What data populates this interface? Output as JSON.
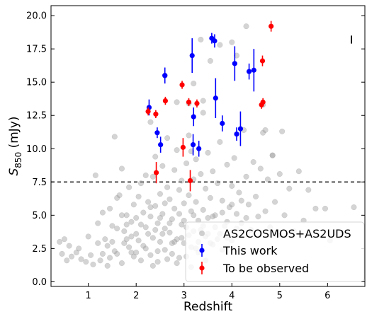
{
  "chart_data": {
    "type": "scatter",
    "xlabel": "Redshift",
    "ylabel_main": "S",
    "ylabel_sub": "850",
    "ylabel_unit": " (mJy)",
    "xlim": [
      0.22,
      6.78
    ],
    "ylim": [
      -0.35,
      20.75
    ],
    "xticks": [
      1,
      2,
      3,
      4,
      5,
      6
    ],
    "yticks": [
      0.0,
      2.5,
      5.0,
      7.5,
      10.0,
      12.5,
      15.0,
      17.5,
      20.0
    ],
    "ytick_labels": [
      "0.0",
      "2.5",
      "5.0",
      "7.5",
      "10.0",
      "12.5",
      "15.0",
      "17.5",
      "20.0"
    ],
    "threshold_line": {
      "y": 7.5,
      "style": "dashed",
      "color": "#000000"
    },
    "legend_position": "lower-right",
    "series": [
      {
        "name": "AS2COSMOS+AS2UDS",
        "color": "#a0a0a0",
        "marker": "circle-alpha",
        "points": [
          [
            0.4,
            3.0
          ],
          [
            0.45,
            2.1
          ],
          [
            0.5,
            3.2
          ],
          [
            0.55,
            1.6
          ],
          [
            0.6,
            2.7
          ],
          [
            0.65,
            1.9
          ],
          [
            0.75,
            2.2
          ],
          [
            0.8,
            2.5
          ],
          [
            0.85,
            1.7
          ],
          [
            0.95,
            1.5
          ],
          [
            1.0,
            3.4
          ],
          [
            1.05,
            2.0
          ],
          [
            1.1,
            1.3
          ],
          [
            1.15,
            8.0
          ],
          [
            1.2,
            2.9
          ],
          [
            1.25,
            1.6
          ],
          [
            1.3,
            2.1
          ],
          [
            1.35,
            3.2
          ],
          [
            1.4,
            1.2
          ],
          [
            1.45,
            1.8
          ],
          [
            1.5,
            3.0
          ],
          [
            1.55,
            2.3
          ],
          [
            1.6,
            4.0
          ],
          [
            1.65,
            6.5
          ],
          [
            1.7,
            1.4
          ],
          [
            1.75,
            3.8
          ],
          [
            1.8,
            5.0
          ],
          [
            1.85,
            2.6
          ],
          [
            1.9,
            4.5
          ],
          [
            1.95,
            1.9
          ],
          [
            1.45,
            5.5
          ],
          [
            1.55,
            10.9
          ],
          [
            1.6,
            6.3
          ],
          [
            1.7,
            8.5
          ],
          [
            1.75,
            2.9
          ],
          [
            1.8,
            4.3
          ],
          [
            1.85,
            7.1
          ],
          [
            1.9,
            3.4
          ],
          [
            1.95,
            5.8
          ],
          [
            2.0,
            2.2
          ],
          [
            2.0,
            4.8
          ],
          [
            2.05,
            6.4
          ],
          [
            2.05,
            3.1
          ],
          [
            2.1,
            1.6
          ],
          [
            2.1,
            7.4
          ],
          [
            2.15,
            5.2
          ],
          [
            2.15,
            2.7
          ],
          [
            2.2,
            4.1
          ],
          [
            2.2,
            8.0
          ],
          [
            2.25,
            3.6
          ],
          [
            2.25,
            6.0
          ],
          [
            2.3,
            2.0
          ],
          [
            2.3,
            4.9
          ],
          [
            2.35,
            7.9
          ],
          [
            2.35,
            3.3
          ],
          [
            2.4,
            5.7
          ],
          [
            2.4,
            9.4
          ],
          [
            2.45,
            1.5
          ],
          [
            2.45,
            4.4
          ],
          [
            2.5,
            6.6
          ],
          [
            2.5,
            3.0
          ],
          [
            2.55,
            8.7
          ],
          [
            2.55,
            5.1
          ],
          [
            2.6,
            2.4
          ],
          [
            2.6,
            4.0
          ],
          [
            2.65,
            7.1
          ],
          [
            2.65,
            10.8
          ],
          [
            2.7,
            3.7
          ],
          [
            2.7,
            6.2
          ],
          [
            2.75,
            2.1
          ],
          [
            2.75,
            4.7
          ],
          [
            2.8,
            8.4
          ],
          [
            2.8,
            5.5
          ],
          [
            2.85,
            3.2
          ],
          [
            2.85,
            9.9
          ],
          [
            2.9,
            6.9
          ],
          [
            2.9,
            1.8
          ],
          [
            2.95,
            4.3
          ],
          [
            2.95,
            7.6
          ],
          [
            3.0,
            5.9
          ],
          [
            3.0,
            2.9
          ],
          [
            3.05,
            8.9
          ],
          [
            3.05,
            4.1
          ],
          [
            3.1,
            6.5
          ],
          [
            3.1,
            11.0
          ],
          [
            3.15,
            2.6
          ],
          [
            3.15,
            5.3
          ],
          [
            3.2,
            7.7
          ],
          [
            3.2,
            3.8
          ],
          [
            3.25,
            9.2
          ],
          [
            3.25,
            6.0
          ],
          [
            3.3,
            2.2
          ],
          [
            3.3,
            4.6
          ],
          [
            3.35,
            8.1
          ],
          [
            3.4,
            5.4
          ],
          [
            3.4,
            12.7
          ],
          [
            3.45,
            3.4
          ],
          [
            3.45,
            7.0
          ],
          [
            3.5,
            9.7
          ],
          [
            3.5,
            4.8
          ],
          [
            3.55,
            6.3
          ],
          [
            3.6,
            2.8
          ],
          [
            3.6,
            8.3
          ],
          [
            3.65,
            5.0
          ],
          [
            3.7,
            7.4
          ],
          [
            3.75,
            3.6
          ],
          [
            3.75,
            10.5
          ],
          [
            3.8,
            6.1
          ],
          [
            3.85,
            4.2
          ],
          [
            3.9,
            8.8
          ],
          [
            3.95,
            5.6
          ],
          [
            4.0,
            7.2
          ],
          [
            4.0,
            3.1
          ],
          [
            4.05,
            9.3
          ],
          [
            4.1,
            5.1
          ],
          [
            4.15,
            6.7
          ],
          [
            4.2,
            4.4
          ],
          [
            4.25,
            11.4
          ],
          [
            4.3,
            7.9
          ],
          [
            4.35,
            5.8
          ],
          [
            4.4,
            3.9
          ],
          [
            4.45,
            9.0
          ],
          [
            4.5,
            6.4
          ],
          [
            4.55,
            4.9
          ],
          [
            4.6,
            8.5
          ],
          [
            4.65,
            11.2
          ],
          [
            4.7,
            5.3
          ],
          [
            4.75,
            7.7
          ],
          [
            4.8,
            4.1
          ],
          [
            4.85,
            9.5
          ],
          [
            4.9,
            6.0
          ],
          [
            4.95,
            3.5
          ],
          [
            5.0,
            8.1
          ],
          [
            5.05,
            11.3
          ],
          [
            5.1,
            5.0
          ],
          [
            5.2,
            7.0
          ],
          [
            5.3,
            3.8
          ],
          [
            5.4,
            8.3
          ],
          [
            5.5,
            4.6
          ],
          [
            5.6,
            6.9
          ],
          [
            5.75,
            5.5
          ],
          [
            5.95,
            5.5
          ],
          [
            6.05,
            3.1
          ],
          [
            6.55,
            5.6
          ],
          [
            2.6,
            15.5
          ],
          [
            2.85,
            13.5
          ],
          [
            3.1,
            13.4
          ],
          [
            3.2,
            14.9
          ],
          [
            3.4,
            13.6
          ],
          [
            3.55,
            16.6
          ],
          [
            3.75,
            17.8
          ],
          [
            4.0,
            18.0
          ],
          [
            4.1,
            17.0
          ],
          [
            4.3,
            19.2
          ],
          [
            4.65,
            13.3
          ],
          [
            4.7,
            11.4
          ],
          [
            4.85,
            9.5
          ],
          [
            3.15,
            9.8
          ],
          [
            3.35,
            18.2
          ],
          [
            2.3,
            12.0
          ],
          [
            2.35,
            1.2
          ],
          [
            2.45,
            2.3
          ],
          [
            2.55,
            3.6
          ],
          [
            2.65,
            1.7
          ],
          [
            2.75,
            2.9
          ],
          [
            2.85,
            1.4
          ],
          [
            2.95,
            3.3
          ],
          [
            3.05,
            1.9
          ],
          [
            3.15,
            1.1
          ],
          [
            3.25,
            2.5
          ],
          [
            3.35,
            3.9
          ],
          [
            3.45,
            1.6
          ],
          [
            3.55,
            2.9
          ],
          [
            3.65,
            4.1
          ],
          [
            3.8,
            2.4
          ],
          [
            3.9,
            3.3
          ],
          [
            1.2,
            4.4
          ],
          [
            1.3,
            5.2
          ],
          [
            1.4,
            2.7
          ],
          [
            1.5,
            4.2
          ],
          [
            1.6,
            2.1
          ],
          [
            1.7,
            5.0
          ],
          [
            1.8,
            3.2
          ],
          [
            1.9,
            2.2
          ],
          [
            2.0,
            3.6
          ],
          [
            2.1,
            4.3
          ],
          [
            2.2,
            2.5
          ],
          [
            2.3,
            5.6
          ],
          [
            2.4,
            3.9
          ],
          [
            2.5,
            4.8
          ],
          [
            2.6,
            5.9
          ],
          [
            2.7,
            4.4
          ],
          [
            2.8,
            3.0
          ],
          [
            2.9,
            5.1
          ],
          [
            3.0,
            4.6
          ],
          [
            3.1,
            3.5
          ],
          [
            3.2,
            5.0
          ],
          [
            3.3,
            3.0
          ],
          [
            3.4,
            4.2
          ],
          [
            3.5,
            3.6
          ],
          [
            3.6,
            4.9
          ],
          [
            3.7,
            3.2
          ],
          [
            3.8,
            5.2
          ],
          [
            3.9,
            4.5
          ],
          [
            4.0,
            5.8
          ],
          [
            4.1,
            4.0
          ],
          [
            4.2,
            6.1
          ],
          [
            4.3,
            4.8
          ]
        ]
      },
      {
        "name": "This work",
        "color": "#0000ff",
        "marker": "circle",
        "points": [
          {
            "x": 2.27,
            "y": 13.1,
            "err": 0.6
          },
          {
            "x": 2.44,
            "y": 11.2,
            "err": 0.4
          },
          {
            "x": 2.51,
            "y": 10.3,
            "err": 0.6
          },
          {
            "x": 2.6,
            "y": 15.5,
            "err": 0.6
          },
          {
            "x": 3.17,
            "y": 17.0,
            "err": 1.3
          },
          {
            "x": 3.19,
            "y": 10.3,
            "err": 0.8
          },
          {
            "x": 3.2,
            "y": 12.4,
            "err": 0.7
          },
          {
            "x": 3.31,
            "y": 10.0,
            "err": 0.6
          },
          {
            "x": 3.58,
            "y": 18.3,
            "err": 0.4
          },
          {
            "x": 3.64,
            "y": 18.1,
            "err": 0.5
          },
          {
            "x": 3.66,
            "y": 13.8,
            "err": 1.5
          },
          {
            "x": 3.8,
            "y": 11.9,
            "err": 0.6
          },
          {
            "x": 4.06,
            "y": 16.4,
            "err": 1.3
          },
          {
            "x": 4.1,
            "y": 11.1,
            "err": 0.5
          },
          {
            "x": 4.18,
            "y": 11.5,
            "err": 1.3
          },
          {
            "x": 4.36,
            "y": 15.8,
            "err": 0.6
          },
          {
            "x": 4.46,
            "y": 15.9,
            "err": 1.6
          }
        ]
      },
      {
        "name": "To be observed",
        "color": "#ff0000",
        "marker": "circle",
        "points": [
          {
            "x": 2.25,
            "y": 12.8,
            "err": 0.3
          },
          {
            "x": 2.41,
            "y": 12.6,
            "err": 0.3
          },
          {
            "x": 2.42,
            "y": 8.2,
            "err": 0.8
          },
          {
            "x": 2.61,
            "y": 13.6,
            "err": 0.3
          },
          {
            "x": 2.96,
            "y": 14.8,
            "err": 0.3
          },
          {
            "x": 2.98,
            "y": 10.1,
            "err": 0.7
          },
          {
            "x": 3.1,
            "y": 13.5,
            "err": 0.3
          },
          {
            "x": 3.13,
            "y": 7.6,
            "err": 0.8
          },
          {
            "x": 3.27,
            "y": 13.4,
            "err": 0.3
          },
          {
            "x": 4.62,
            "y": 13.3,
            "err": 0.3
          },
          {
            "x": 4.65,
            "y": 13.5,
            "err": 0.3
          },
          {
            "x": 4.64,
            "y": 16.6,
            "err": 0.4
          },
          {
            "x": 4.82,
            "y": 19.2,
            "err": 0.4
          }
        ]
      }
    ],
    "corner_errorbar": {
      "x": 6.5,
      "y": 18.2,
      "err": 0.3,
      "color": "#000000"
    }
  }
}
